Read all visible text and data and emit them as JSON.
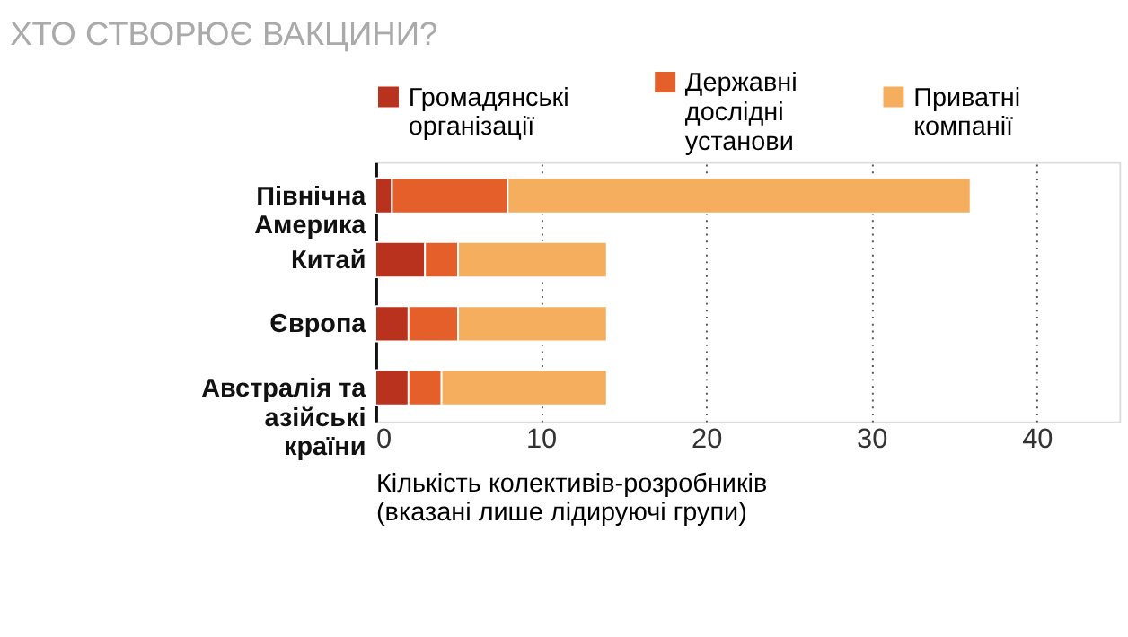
{
  "chart_data": {
    "type": "bar",
    "orientation": "horizontal",
    "stacked": true,
    "title": "ХТО СТВОРЮЄ ВАКЦИНИ?",
    "xlabel": "Кількість колективів-розробників (вказані лише лідируючі групи)",
    "categories": [
      "Північна Америка",
      "Китай",
      "Європа",
      "Австралія та азійські країни"
    ],
    "series": [
      {
        "name": "Громадянські організації",
        "color": "#b8321e",
        "values": [
          1,
          3,
          2,
          2
        ]
      },
      {
        "name": "Державні дослідні установи",
        "color": "#e55f2b",
        "values": [
          7,
          2,
          3,
          2
        ]
      },
      {
        "name": "Приватні компанії",
        "color": "#f5ae5e",
        "values": [
          28,
          9,
          9,
          10
        ]
      }
    ],
    "xlim": [
      0,
      45
    ],
    "xticks": [
      0,
      10,
      20,
      30,
      40
    ],
    "grid": "x",
    "legend": "top"
  }
}
